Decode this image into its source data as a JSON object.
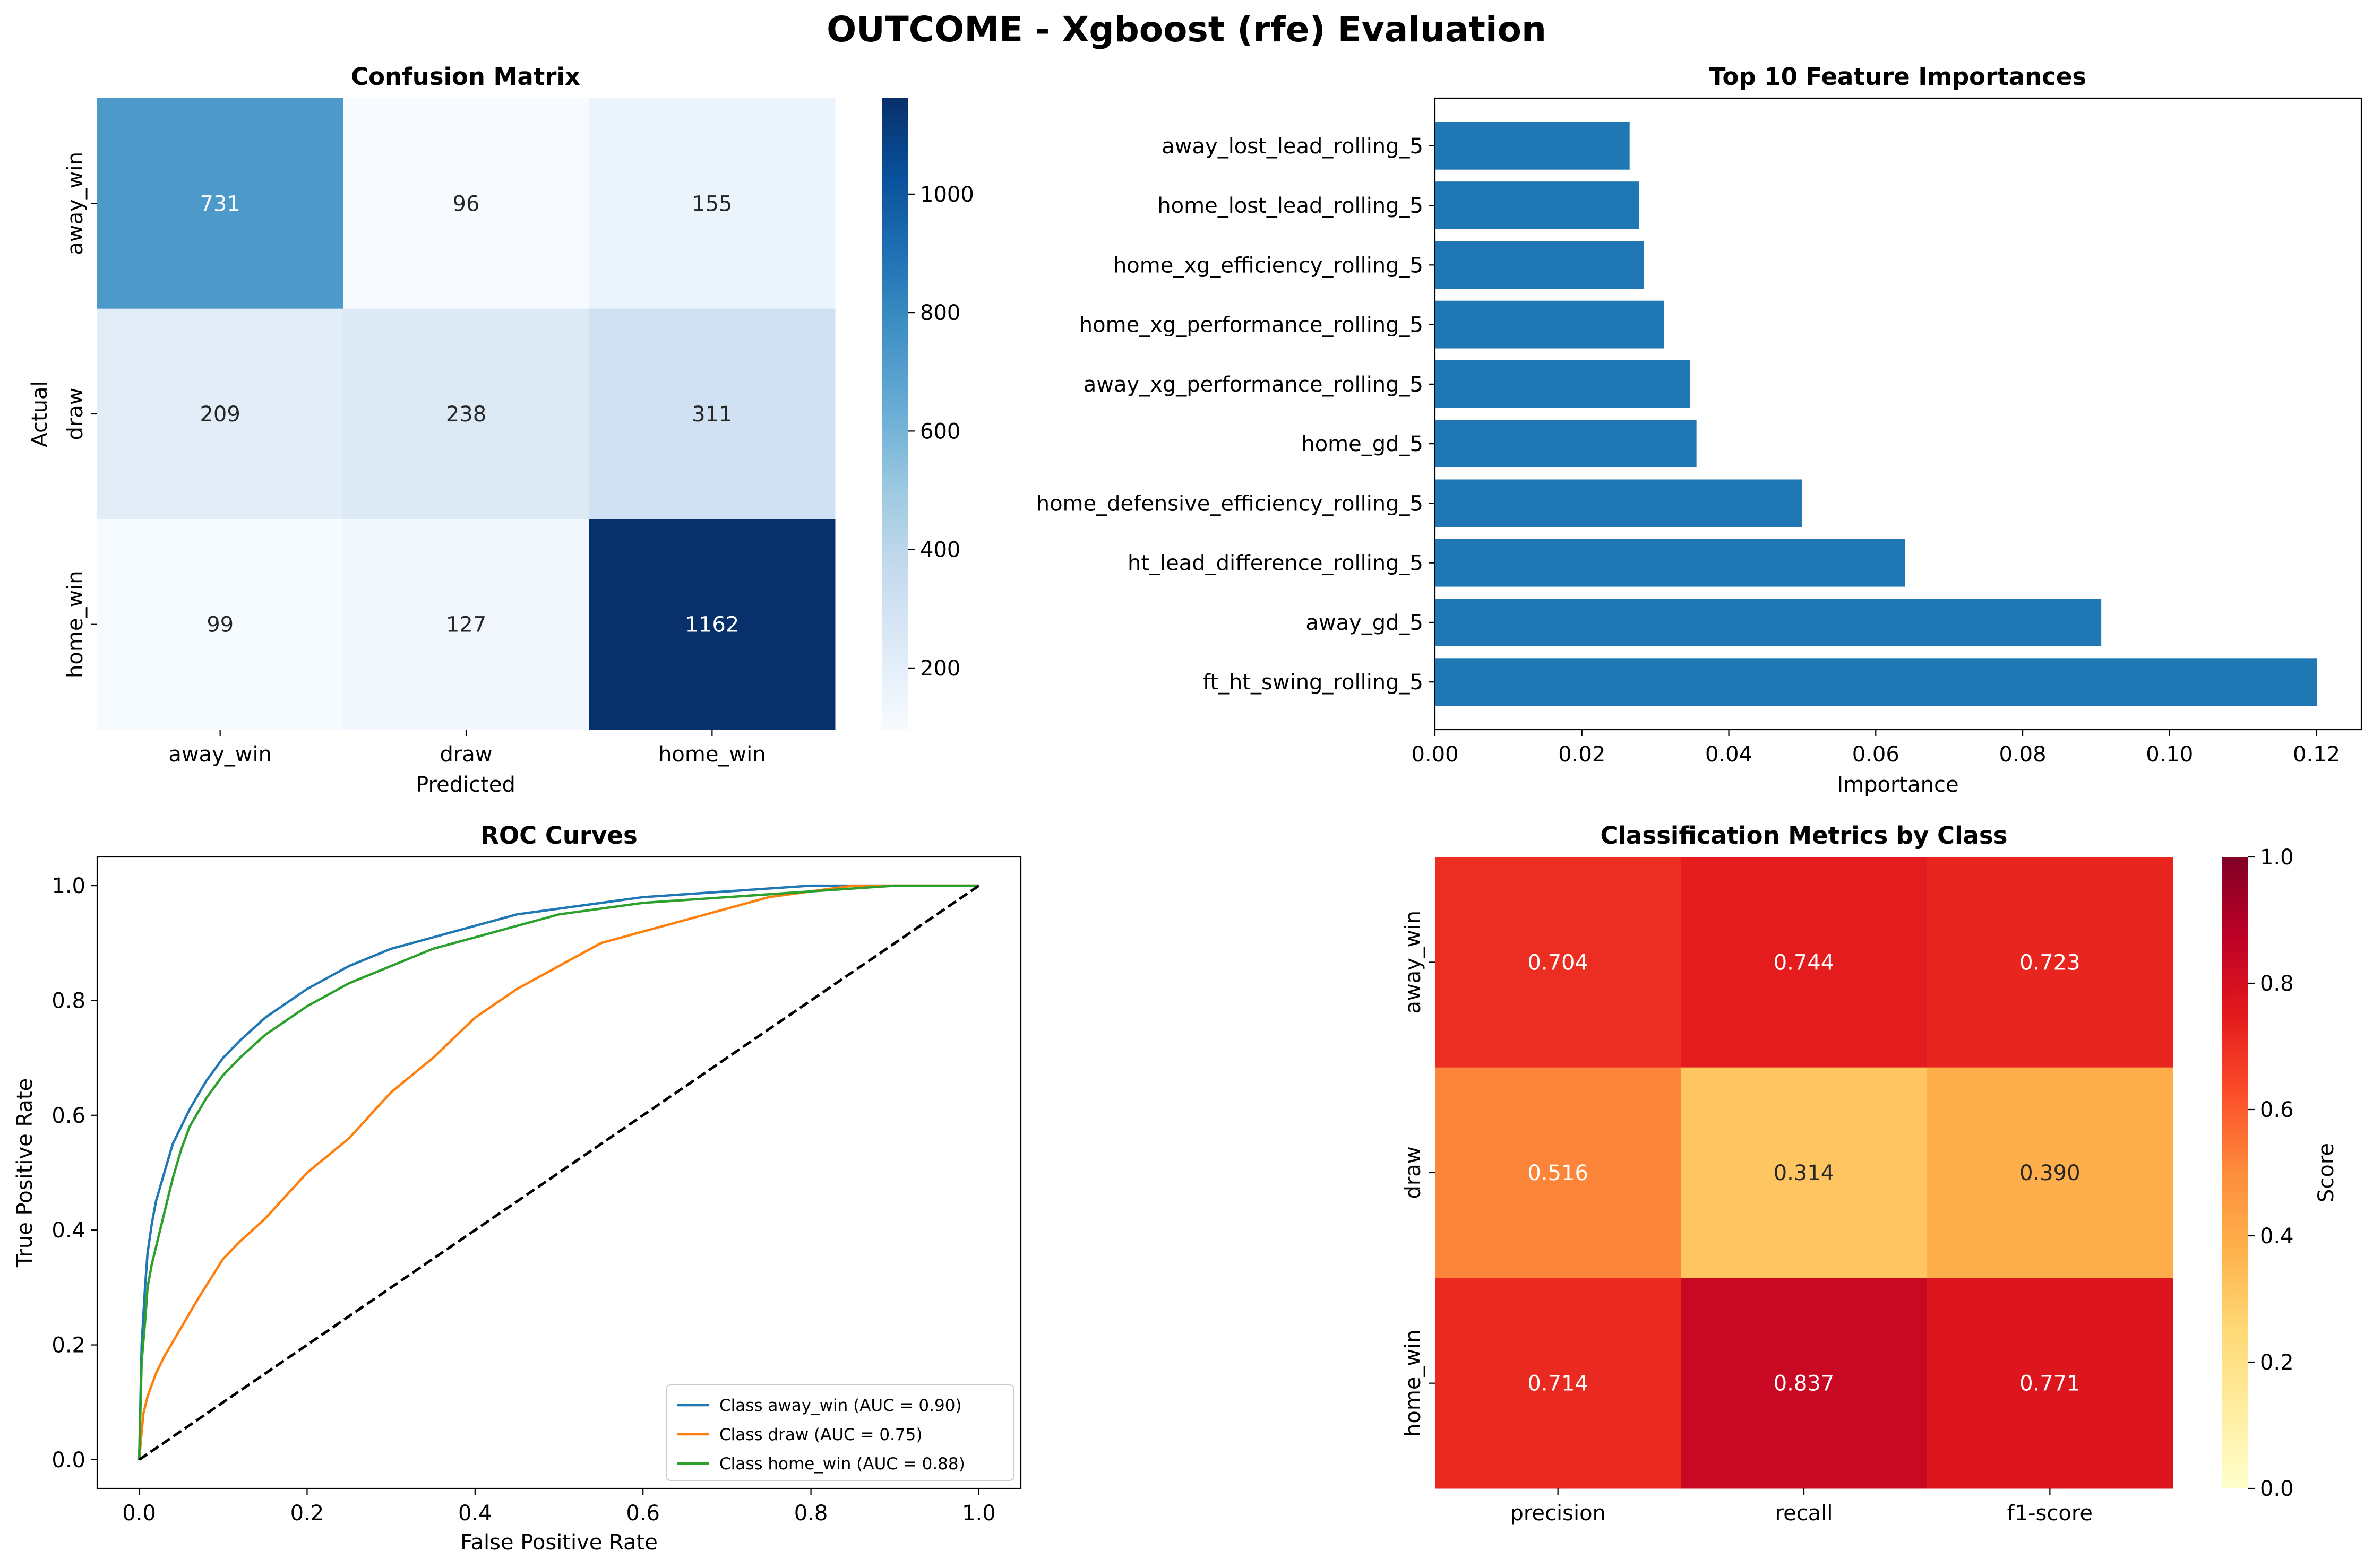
{
  "suptitle": "OUTCOME - Xgboost (rfe) Evaluation",
  "chart_data": [
    {
      "type": "heatmap",
      "title": "Confusion Matrix",
      "xlabel": "Predicted",
      "ylabel": "Actual",
      "x_categories": [
        "away_win",
        "draw",
        "home_win"
      ],
      "y_categories": [
        "away_win",
        "draw",
        "home_win"
      ],
      "values": [
        [
          731,
          96,
          155
        ],
        [
          209,
          238,
          311
        ],
        [
          99,
          127,
          1162
        ]
      ],
      "labels": [
        [
          "731",
          "96",
          "155"
        ],
        [
          "209",
          "238",
          "311"
        ],
        [
          "99",
          "127",
          "1162"
        ]
      ],
      "colormap": "Blues",
      "vmin": 96,
      "vmax": 1162,
      "colorbar_ticks": [
        200,
        400,
        600,
        800,
        1000
      ],
      "colorbar_tick_labels": [
        "200",
        "400",
        "600",
        "800",
        "1000"
      ]
    },
    {
      "type": "bar",
      "orientation": "horizontal",
      "title": "Top 10 Feature Importances",
      "xlabel": "Importance",
      "ylabel": "",
      "categories": [
        "away_lost_lead_rolling_5",
        "home_lost_lead_rolling_5",
        "home_xg_efficiency_rolling_5",
        "home_xg_performance_rolling_5",
        "away_xg_performance_rolling_5",
        "home_gd_5",
        "home_defensive_efficiency_rolling_5",
        "ht_lead_difference_rolling_5",
        "away_gd_5",
        "ft_ht_swing_rolling_5"
      ],
      "values": [
        0.0265,
        0.0278,
        0.0284,
        0.0312,
        0.0347,
        0.0356,
        0.05,
        0.064,
        0.0907,
        0.1201
      ],
      "xlim": [
        0,
        0.1261
      ],
      "xticks": [
        0.0,
        0.02,
        0.04,
        0.06,
        0.08,
        0.1,
        0.12
      ],
      "xtick_labels": [
        "0.00",
        "0.02",
        "0.04",
        "0.06",
        "0.08",
        "0.10",
        "0.12"
      ],
      "color": "#1f77b4"
    },
    {
      "type": "line",
      "title": "ROC Curves",
      "xlabel": "False Positive Rate",
      "ylabel": "True Positive Rate",
      "xlim": [
        -0.05,
        1.05
      ],
      "ylim": [
        -0.05,
        1.05
      ],
      "xticks": [
        0.0,
        0.2,
        0.4,
        0.6,
        0.8,
        1.0
      ],
      "xtick_labels": [
        "0.0",
        "0.2",
        "0.4",
        "0.6",
        "0.8",
        "1.0"
      ],
      "yticks": [
        0.0,
        0.2,
        0.4,
        0.6,
        0.8,
        1.0
      ],
      "ytick_labels": [
        "0.0",
        "0.2",
        "0.4",
        "0.6",
        "0.8",
        "1.0"
      ],
      "legend_position": "lower-right",
      "series": [
        {
          "name": "Class away_win (AUC = 0.90)",
          "color": "#1f77b4",
          "x": [
            0,
            0.003,
            0.007,
            0.01,
            0.015,
            0.02,
            0.03,
            0.04,
            0.05,
            0.06,
            0.08,
            0.1,
            0.12,
            0.15,
            0.2,
            0.25,
            0.3,
            0.35,
            0.4,
            0.45,
            0.5,
            0.6,
            0.7,
            0.8,
            0.9,
            1.0
          ],
          "y": [
            0,
            0.2,
            0.3,
            0.36,
            0.41,
            0.45,
            0.5,
            0.55,
            0.58,
            0.61,
            0.66,
            0.7,
            0.73,
            0.77,
            0.82,
            0.86,
            0.89,
            0.91,
            0.93,
            0.95,
            0.96,
            0.98,
            0.99,
            1.0,
            1.0,
            1.0
          ]
        },
        {
          "name": "Class draw (AUC = 0.75)",
          "color": "#ff7f0e",
          "x": [
            0,
            0.005,
            0.01,
            0.02,
            0.03,
            0.05,
            0.07,
            0.1,
            0.12,
            0.15,
            0.2,
            0.25,
            0.3,
            0.35,
            0.4,
            0.45,
            0.5,
            0.55,
            0.6,
            0.65,
            0.7,
            0.75,
            0.8,
            0.85,
            0.9,
            1.0
          ],
          "y": [
            0,
            0.08,
            0.11,
            0.15,
            0.18,
            0.23,
            0.28,
            0.35,
            0.38,
            0.42,
            0.5,
            0.56,
            0.64,
            0.7,
            0.77,
            0.82,
            0.86,
            0.9,
            0.92,
            0.94,
            0.96,
            0.98,
            0.99,
            1.0,
            1.0,
            1.0
          ]
        },
        {
          "name": "Class home_win (AUC = 0.88)",
          "color": "#2ca02c",
          "x": [
            0,
            0.003,
            0.007,
            0.01,
            0.015,
            0.02,
            0.03,
            0.04,
            0.05,
            0.06,
            0.08,
            0.1,
            0.12,
            0.15,
            0.2,
            0.25,
            0.3,
            0.35,
            0.4,
            0.45,
            0.5,
            0.6,
            0.7,
            0.8,
            0.9,
            1.0
          ],
          "y": [
            0,
            0.17,
            0.24,
            0.3,
            0.34,
            0.37,
            0.43,
            0.49,
            0.54,
            0.58,
            0.63,
            0.67,
            0.7,
            0.74,
            0.79,
            0.83,
            0.86,
            0.89,
            0.91,
            0.93,
            0.95,
            0.97,
            0.98,
            0.99,
            1.0,
            1.0
          ]
        },
        {
          "name": "",
          "color": "#000000",
          "dashed": true,
          "x": [
            0,
            1
          ],
          "y": [
            0,
            1
          ]
        }
      ]
    },
    {
      "type": "heatmap",
      "title": "Classification Metrics by Class",
      "xlabel": "",
      "ylabel": "",
      "x_categories": [
        "precision",
        "recall",
        "f1-score"
      ],
      "y_categories": [
        "away_win",
        "draw",
        "home_win"
      ],
      "values": [
        [
          0.704,
          0.744,
          0.723
        ],
        [
          0.516,
          0.314,
          0.39
        ],
        [
          0.714,
          0.837,
          0.771
        ]
      ],
      "labels": [
        [
          "0.704",
          "0.744",
          "0.723"
        ],
        [
          "0.516",
          "0.314",
          "0.390"
        ],
        [
          "0.714",
          "0.837",
          "0.771"
        ]
      ],
      "colormap": "YlOrRd",
      "vmin": 0,
      "vmax": 1,
      "colorbar_label": "Score",
      "colorbar_ticks": [
        0.0,
        0.2,
        0.4,
        0.6,
        0.8,
        1.0
      ],
      "colorbar_tick_labels": [
        "0.0",
        "0.2",
        "0.4",
        "0.6",
        "0.8",
        "1.0"
      ]
    }
  ]
}
